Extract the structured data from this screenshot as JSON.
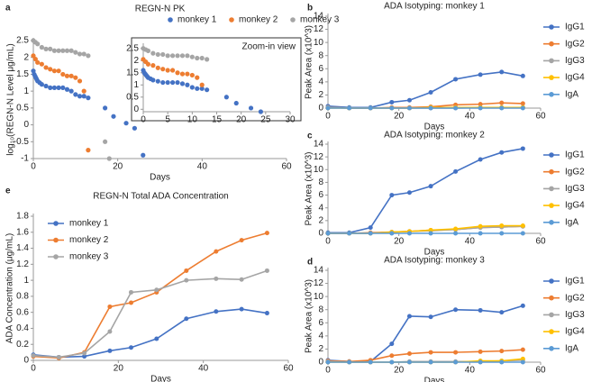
{
  "chart_data": [
    {
      "type": "scatter",
      "panel_label": "a",
      "title": "REGN-N PK",
      "x_label": "Days",
      "y_label": "log₁₀(REGN-N Level μg/mL)",
      "legend": "top",
      "xlim": [
        0,
        60
      ],
      "xticks": [
        0,
        20,
        40,
        60
      ],
      "ylim": [
        -1,
        2.5
      ],
      "yticks": [
        2.5,
        2,
        1.5,
        1,
        0.5,
        0,
        -0.5,
        -1
      ],
      "series": [
        {
          "name": "monkey 1",
          "color": "#4472c4",
          "x": [
            0,
            0.2,
            0.4,
            0.6,
            0.8,
            1,
            1.5,
            2,
            3,
            4,
            5,
            6,
            7,
            8,
            9,
            10,
            11,
            12,
            13,
            17,
            19,
            22,
            24,
            26
          ],
          "values": [
            1.6,
            1.5,
            1.45,
            1.4,
            1.35,
            1.3,
            1.25,
            1.2,
            1.15,
            1.1,
            1.1,
            1.1,
            1.1,
            1.05,
            1.0,
            0.9,
            0.85,
            0.85,
            0.8,
            0.5,
            0.25,
            0.05,
            -0.1,
            -0.9
          ]
        },
        {
          "name": "monkey 2",
          "color": "#ed7d31",
          "x": [
            0,
            0.5,
            1,
            2,
            3,
            4,
            5,
            6,
            7,
            8,
            9,
            10,
            11,
            12,
            13
          ],
          "values": [
            2.05,
            1.95,
            1.85,
            1.8,
            1.7,
            1.65,
            1.6,
            1.6,
            1.5,
            1.45,
            1.45,
            1.4,
            1.3,
            1.0,
            -0.75
          ]
        },
        {
          "name": "monkey 3",
          "color": "#a5a5a5",
          "x": [
            0,
            0.5,
            1,
            2,
            3,
            4,
            5,
            6,
            7,
            8,
            9,
            10,
            11,
            12,
            13,
            17,
            18
          ],
          "values": [
            2.5,
            2.45,
            2.4,
            2.3,
            2.25,
            2.25,
            2.2,
            2.2,
            2.2,
            2.2,
            2.2,
            2.15,
            2.1,
            2.1,
            2.05,
            -0.5,
            -1
          ]
        }
      ],
      "inset": {
        "title": "Zoom-in view",
        "xlim": [
          0,
          30
        ],
        "xticks": [
          0,
          5,
          10,
          15,
          20,
          25,
          30
        ],
        "ylim": [
          -0.1,
          2.6
        ],
        "yticks": [
          2.5,
          2,
          1.5,
          1,
          0.5,
          0
        ]
      }
    },
    {
      "type": "line",
      "panel_label": "b",
      "title": "ADA Isotyping: monkey 1",
      "x_label": "Days",
      "y_label": "Peak Area (x10^3)",
      "legend": "right",
      "xlim": [
        0,
        60
      ],
      "xticks": [
        0,
        20,
        40,
        60
      ],
      "ylim": [
        0,
        14
      ],
      "yticks": [
        0,
        2,
        4,
        6,
        8,
        10,
        12,
        14
      ],
      "x": [
        0,
        6,
        12,
        18,
        23,
        29,
        36,
        43,
        49,
        55
      ],
      "series": [
        {
          "name": "IgG1",
          "color": "#4472c4",
          "values": [
            0.3,
            0.1,
            0.1,
            0.9,
            1.2,
            2.4,
            4.4,
            5.1,
            5.5,
            4.9
          ]
        },
        {
          "name": "IgG2",
          "color": "#ed7d31",
          "values": [
            0.1,
            0,
            0,
            0.1,
            0.1,
            0.2,
            0.5,
            0.6,
            0.8,
            0.7
          ]
        },
        {
          "name": "IgG3",
          "color": "#a5a5a5",
          "values": [
            0.1,
            0,
            0,
            0,
            0,
            0,
            0,
            0.1,
            0.1,
            0.1
          ]
        },
        {
          "name": "IgG4",
          "color": "#ffc000",
          "values": [
            0,
            0,
            0,
            0,
            0,
            0.1,
            0.1,
            0.1,
            0.1,
            0.1
          ]
        },
        {
          "name": "IgA",
          "color": "#5b9bd5",
          "values": [
            0,
            0,
            0,
            0,
            0,
            0,
            0,
            0,
            0,
            0
          ]
        }
      ]
    },
    {
      "type": "line",
      "panel_label": "c",
      "title": "ADA Isotyping: monkey 2",
      "x_label": "Days",
      "y_label": "Peak Area (x10^3)",
      "legend": "right",
      "xlim": [
        0,
        60
      ],
      "xticks": [
        0,
        20,
        40,
        60
      ],
      "ylim": [
        0,
        14
      ],
      "yticks": [
        0,
        2,
        4,
        6,
        8,
        10,
        12,
        14
      ],
      "x": [
        0,
        6,
        12,
        18,
        23,
        29,
        36,
        43,
        49,
        55
      ],
      "series": [
        {
          "name": "IgG1",
          "color": "#4472c4",
          "values": [
            0.1,
            0.1,
            0.9,
            6.0,
            6.4,
            7.4,
            9.7,
            11.6,
            12.7,
            13.3
          ]
        },
        {
          "name": "IgG2",
          "color": "#ed7d31",
          "values": [
            0,
            0,
            0.1,
            0.2,
            0.3,
            0.5,
            0.6,
            0.9,
            1.0,
            1.1
          ]
        },
        {
          "name": "IgG3",
          "color": "#a5a5a5",
          "values": [
            0,
            0,
            0,
            0.2,
            0.3,
            0.4,
            0.6,
            0.9,
            1.0,
            1.1
          ]
        },
        {
          "name": "IgG4",
          "color": "#ffc000",
          "values": [
            0,
            0,
            0,
            0.2,
            0.3,
            0.5,
            0.7,
            1.1,
            1.2,
            1.2
          ]
        },
        {
          "name": "IgA",
          "color": "#5b9bd5",
          "values": [
            0,
            0,
            0,
            0,
            0,
            0,
            0,
            0,
            0,
            0
          ]
        }
      ]
    },
    {
      "type": "line",
      "panel_label": "d",
      "title": "ADA Isotyping: monkey 3",
      "x_label": "Days",
      "y_label": "Peak Area (x10^3)",
      "legend": "right",
      "xlim": [
        0,
        60
      ],
      "xticks": [
        0,
        20,
        40,
        60
      ],
      "ylim": [
        0,
        14
      ],
      "yticks": [
        0,
        2,
        4,
        6,
        8,
        10,
        12,
        14
      ],
      "x": [
        0,
        6,
        12,
        18,
        23,
        29,
        36,
        43,
        49,
        55
      ],
      "series": [
        {
          "name": "IgG1",
          "color": "#4472c4",
          "values": [
            0.3,
            0.1,
            0.1,
            2.8,
            7.0,
            6.9,
            8.0,
            7.9,
            7.6,
            8.6
          ]
        },
        {
          "name": "IgG2",
          "color": "#ed7d31",
          "values": [
            0.2,
            0.1,
            0.3,
            1.0,
            1.3,
            1.5,
            1.5,
            1.6,
            1.7,
            1.9
          ]
        },
        {
          "name": "IgG3",
          "color": "#a5a5a5",
          "values": [
            0.1,
            0,
            0,
            0,
            0.1,
            0.1,
            0.1,
            0.1,
            0.2,
            0.3
          ]
        },
        {
          "name": "IgG4",
          "color": "#ffc000",
          "values": [
            0,
            0,
            0,
            0,
            0,
            0,
            0,
            0.2,
            0.2,
            0.5
          ]
        },
        {
          "name": "IgA",
          "color": "#5b9bd5",
          "values": [
            0,
            0,
            0,
            0,
            0,
            0,
            0,
            0,
            0,
            0
          ]
        }
      ]
    },
    {
      "type": "line",
      "panel_label": "e",
      "title": "REGN-N Total ADA Concentration",
      "x_label": "Days",
      "y_label": "ADA Concentration (μg/mL)",
      "legend": "upper left",
      "xlim": [
        0,
        60
      ],
      "xticks": [
        0,
        20,
        40,
        60
      ],
      "ylim": [
        0,
        1.8
      ],
      "yticks": [
        0,
        0.2,
        0.4,
        0.6,
        0.8,
        1,
        1.2,
        1.4,
        1.6,
        1.8
      ],
      "x": [
        0,
        6,
        12,
        18,
        23,
        29,
        36,
        43,
        49,
        55
      ],
      "series": [
        {
          "name": "monkey 1",
          "color": "#4472c4",
          "values": [
            0.07,
            0.04,
            0.05,
            0.12,
            0.16,
            0.27,
            0.52,
            0.61,
            0.64,
            0.59
          ]
        },
        {
          "name": "monkey 2",
          "color": "#ed7d31",
          "values": [
            0.05,
            0.03,
            0.1,
            0.67,
            0.72,
            0.85,
            1.12,
            1.36,
            1.5,
            1.59
          ]
        },
        {
          "name": "monkey 3",
          "color": "#a5a5a5",
          "values": [
            0.06,
            0.04,
            0.09,
            0.36,
            0.85,
            0.88,
            1.0,
            1.02,
            1.01,
            1.12
          ]
        }
      ]
    }
  ]
}
